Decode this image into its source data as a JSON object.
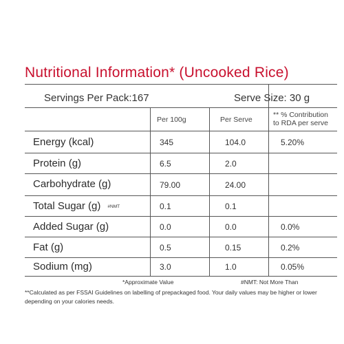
{
  "title": "Nutritional Information*  (Uncooked Rice)",
  "servings_per_pack": "Servings Per Pack:167",
  "serve_size": "Serve Size: 30 g",
  "columns": {
    "per_100g": "Per 100g",
    "per_serve": "Per Serve",
    "rda_line1": "** % Contribution",
    "rda_line2": "to RDA per serve"
  },
  "rows": [
    {
      "label": "Energy (kcal)",
      "per_100g": "345",
      "per_serve": "104.0",
      "rda": "5.20%"
    },
    {
      "label": "Protein (g)",
      "per_100g": "6.5",
      "per_serve": "2.0",
      "rda": ""
    },
    {
      "label": "Carbohydrate (g)",
      "per_100g": "79.00",
      "per_serve": "24.00",
      "rda": ""
    },
    {
      "label": "Total Sugar (g)",
      "tag": "#NMT",
      "per_100g": "0.1",
      "per_serve": "0.1",
      "rda": ""
    },
    {
      "label": "Added Sugar (g)",
      "per_100g": "0.0",
      "per_serve": "0.0",
      "rda": "0.0%"
    },
    {
      "label": "Fat (g)",
      "per_100g": "0.5",
      "per_serve": "0.15",
      "rda": "0.2%"
    },
    {
      "label": "Sodium (mg)",
      "per_100g": "3.0",
      "per_serve": "1.0",
      "rda": "0.05%"
    }
  ],
  "footnotes": {
    "approx": "*Approximate Value",
    "nmt": "#NMT: Not More Than",
    "calc": "**Calculated as per FSSAI Guidelines on labelling of prepackaged food. Your daily values may be higher or lower depending on your calories needs."
  }
}
